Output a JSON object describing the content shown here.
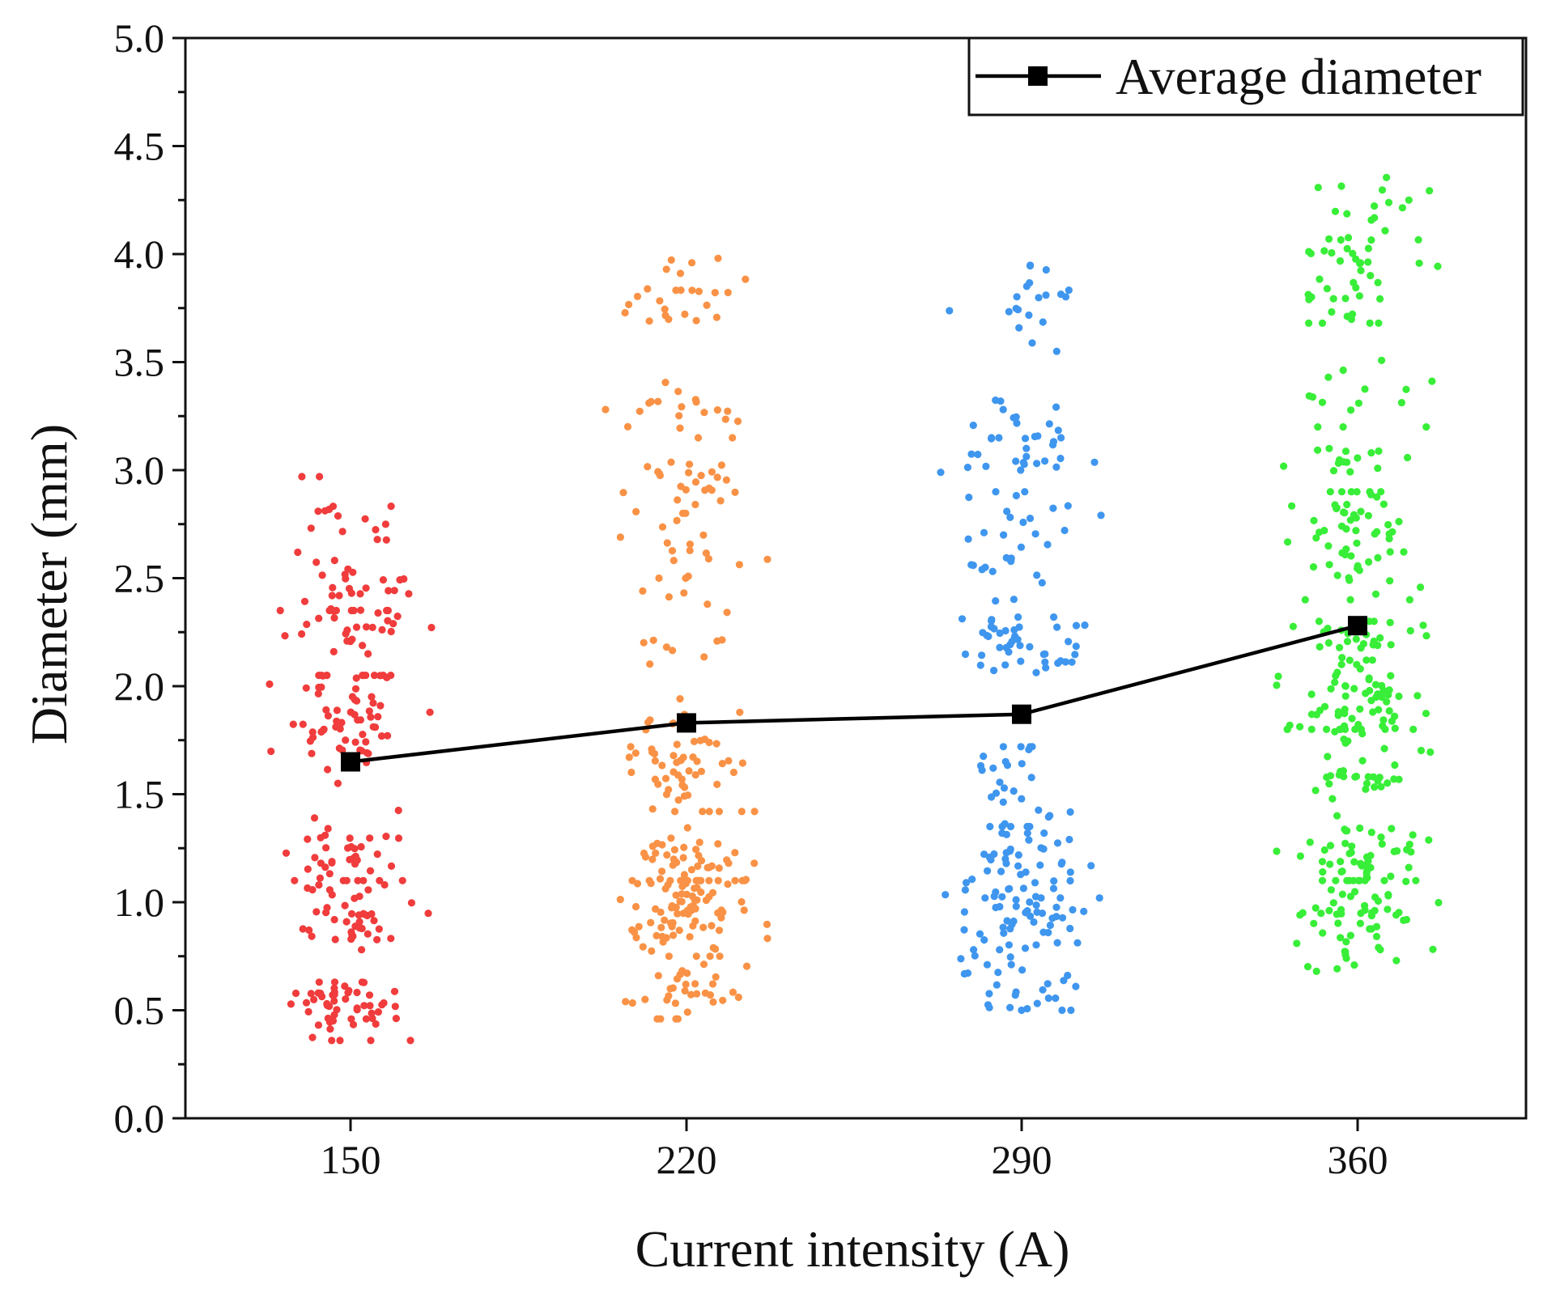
{
  "chart_data": {
    "type": "scatter",
    "title": "",
    "xlabel": "Current intensity (A)",
    "ylabel": "Diameter (mm)",
    "x_categories": [
      "150",
      "220",
      "290",
      "360"
    ],
    "ylim": [
      0.0,
      5.0
    ],
    "y_ticks": [
      "0.0",
      "0.5",
      "1.0",
      "1.5",
      "2.0",
      "2.5",
      "3.0",
      "3.5",
      "4.0",
      "4.5",
      "5.0"
    ],
    "grid": false,
    "legend": {
      "position": "top-right",
      "entries": [
        "Average diameter"
      ]
    },
    "average_series": {
      "name": "Average diameter",
      "color": "#000000",
      "marker": "square",
      "values": [
        1.65,
        1.83,
        1.87,
        2.28
      ]
    },
    "scatter_series": [
      {
        "x": "150",
        "color": "#f03c3c",
        "range": [
          0.36,
          2.97
        ],
        "clusters": [
          {
            "center": 0.5,
            "min": 0.36,
            "max": 0.63,
            "count": 55
          },
          {
            "center": 0.95,
            "min": 0.78,
            "max": 1.1,
            "count": 45
          },
          {
            "center": 1.2,
            "min": 1.1,
            "max": 1.45,
            "count": 35
          },
          {
            "center": 1.88,
            "min": 1.55,
            "max": 2.05,
            "count": 70
          },
          {
            "center": 2.28,
            "min": 2.15,
            "max": 2.35,
            "count": 25
          },
          {
            "center": 2.45,
            "min": 2.35,
            "max": 2.62,
            "count": 30
          },
          {
            "center": 2.82,
            "min": 2.65,
            "max": 2.97,
            "count": 15
          }
        ]
      },
      {
        "x": "220",
        "color": "#f99246",
        "range": [
          0.46,
          3.98
        ],
        "clusters": [
          {
            "center": 0.6,
            "min": 0.46,
            "max": 0.75,
            "count": 35
          },
          {
            "center": 0.95,
            "min": 0.75,
            "max": 1.1,
            "count": 80
          },
          {
            "center": 1.18,
            "min": 1.1,
            "max": 1.4,
            "count": 50
          },
          {
            "center": 1.65,
            "min": 1.42,
            "max": 1.98,
            "count": 60
          },
          {
            "center": 2.3,
            "min": 2.1,
            "max": 2.5,
            "count": 15
          },
          {
            "center": 2.65,
            "min": 2.5,
            "max": 2.8,
            "count": 15
          },
          {
            "center": 2.92,
            "min": 2.8,
            "max": 3.12,
            "count": 25
          },
          {
            "center": 3.3,
            "min": 3.15,
            "max": 3.46,
            "count": 20
          },
          {
            "center": 3.8,
            "min": 3.68,
            "max": 3.98,
            "count": 25
          }
        ]
      },
      {
        "x": "290",
        "color": "#3f96ee",
        "range": [
          0.5,
          3.95
        ],
        "clusters": [
          {
            "center": 0.6,
            "min": 0.5,
            "max": 0.78,
            "count": 30
          },
          {
            "center": 0.92,
            "min": 0.78,
            "max": 1.02,
            "count": 40
          },
          {
            "center": 1.18,
            "min": 1.02,
            "max": 1.32,
            "count": 45
          },
          {
            "center": 1.55,
            "min": 1.35,
            "max": 1.72,
            "count": 30
          },
          {
            "center": 2.2,
            "min": 2.02,
            "max": 2.32,
            "count": 45
          },
          {
            "center": 2.55,
            "min": 2.35,
            "max": 2.7,
            "count": 15
          },
          {
            "center": 2.8,
            "min": 2.7,
            "max": 2.9,
            "count": 15
          },
          {
            "center": 3.05,
            "min": 2.95,
            "max": 3.15,
            "count": 20
          },
          {
            "center": 3.25,
            "min": 3.15,
            "max": 3.45,
            "count": 15
          },
          {
            "center": 3.75,
            "min": 3.55,
            "max": 3.95,
            "count": 20
          }
        ]
      },
      {
        "x": "360",
        "color": "#38ee38",
        "range": [
          0.68,
          4.41
        ],
        "clusters": [
          {
            "center": 0.95,
            "min": 0.68,
            "max": 1.1,
            "count": 60
          },
          {
            "center": 1.2,
            "min": 1.1,
            "max": 1.4,
            "count": 50
          },
          {
            "center": 1.62,
            "min": 1.45,
            "max": 1.8,
            "count": 40
          },
          {
            "center": 1.95,
            "min": 1.8,
            "max": 2.1,
            "count": 60
          },
          {
            "center": 2.22,
            "min": 2.12,
            "max": 2.3,
            "count": 30
          },
          {
            "center": 2.68,
            "min": 2.4,
            "max": 2.9,
            "count": 60
          },
          {
            "center": 3.05,
            "min": 2.98,
            "max": 3.1,
            "count": 15
          },
          {
            "center": 3.3,
            "min": 3.2,
            "max": 3.55,
            "count": 15
          },
          {
            "center": 3.98,
            "min": 3.68,
            "max": 4.25,
            "count": 50
          },
          {
            "center": 4.3,
            "min": 4.25,
            "max": 4.41,
            "count": 5
          }
        ]
      }
    ]
  }
}
